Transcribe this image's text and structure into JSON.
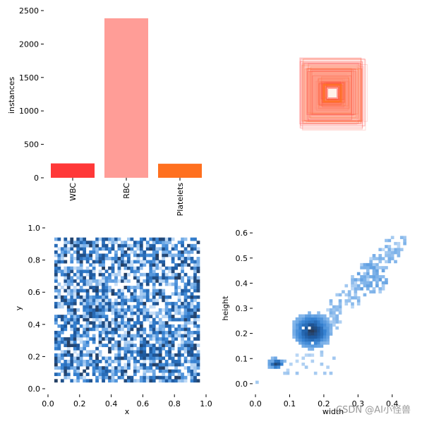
{
  "chart_data": [
    {
      "type": "bar",
      "categories": [
        "WBC",
        "RBC",
        "Platelets"
      ],
      "values": [
        215,
        2385,
        210
      ],
      "colors": [
        "#ff3838",
        "#ff9d97",
        "#ff701f"
      ],
      "ylabel": "instances",
      "ylim": [
        0,
        2500
      ],
      "yticks": [
        "0",
        "500",
        "1000",
        "1500",
        "2000",
        "2500"
      ]
    },
    {
      "type": "boxes-overlay",
      "description_colors": [
        "#ff3838",
        "#ff9d97",
        "#ff701f"
      ],
      "axes": "off"
    },
    {
      "type": "heatmap",
      "xlabel": "x",
      "ylabel": "y",
      "xlim": [
        0,
        1
      ],
      "ylim": [
        0,
        1
      ],
      "xticks": [
        "0.0",
        "0.2",
        "0.4",
        "0.6",
        "0.8",
        "1.0"
      ],
      "yticks": [
        "0.0",
        "0.2",
        "0.4",
        "0.6",
        "0.8",
        "1.0"
      ],
      "data_range": {
        "x": [
          0.05,
          0.95
        ],
        "y": [
          0.05,
          0.93
        ]
      },
      "color": "#1f77b4"
    },
    {
      "type": "heatmap",
      "xlabel": "width",
      "ylabel": "height",
      "xlim": [
        0,
        0.45
      ],
      "ylim": [
        -0.02,
        0.62
      ],
      "xticks": [
        "0.0",
        "0.1",
        "0.2",
        "0.3",
        "0.4"
      ],
      "yticks": [
        "0.0",
        "0.1",
        "0.2",
        "0.3",
        "0.4",
        "0.5",
        "0.6"
      ],
      "clusters": [
        {
          "x": 0.06,
          "y": 0.08
        },
        {
          "x": 0.165,
          "y": 0.21
        },
        {
          "x": 0.34,
          "y": 0.42
        }
      ],
      "color": "#1f77b4"
    }
  ],
  "watermark": "CSDN @AI小怪兽"
}
